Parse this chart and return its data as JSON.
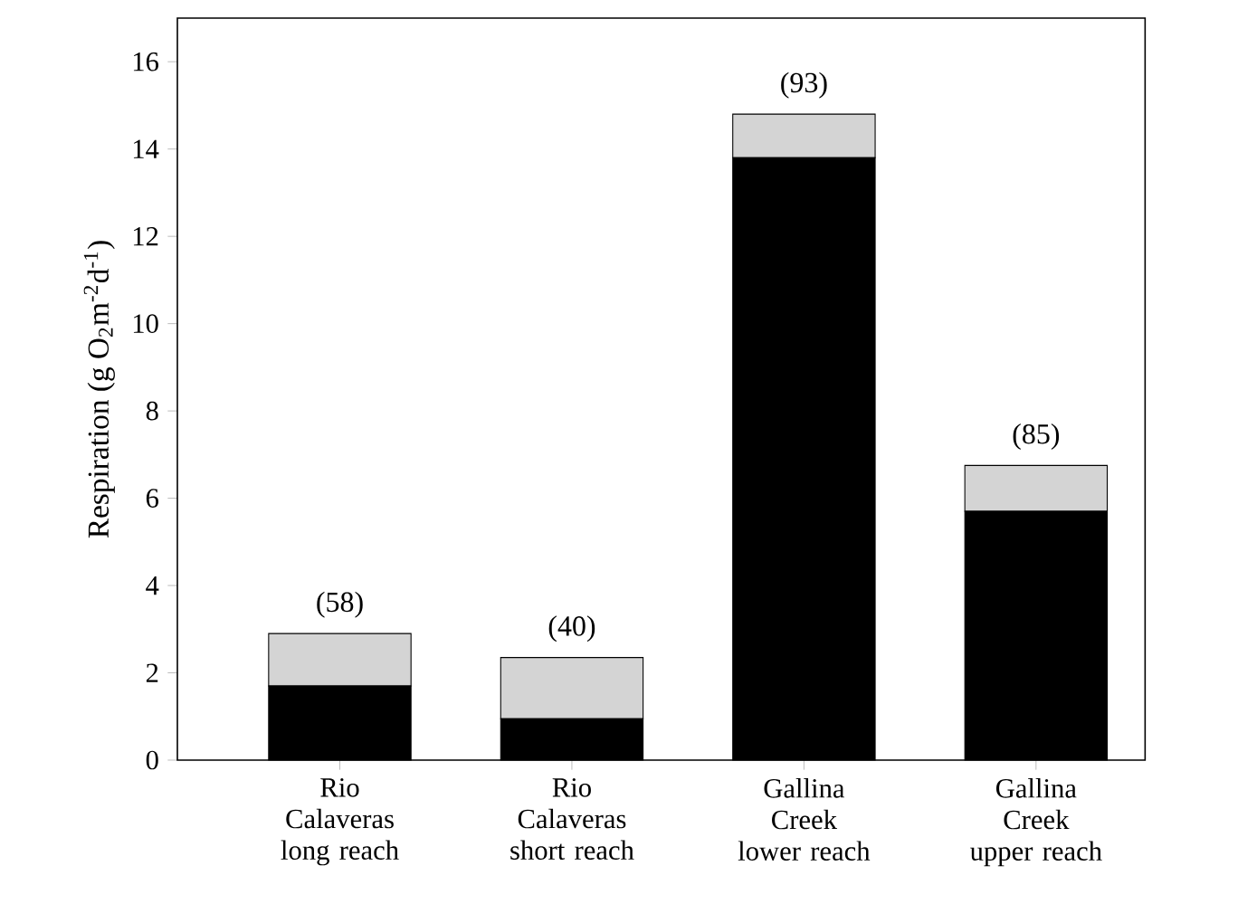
{
  "chart_data": {
    "type": "bar",
    "stacked": true,
    "ylabel": "Respiration  (g O$_{2}$m$^{-2}$d$^{-1}$)",
    "categories": [
      "Rio Calaveras long reach",
      "Rio Calaveras short reach",
      "Gallina Creek lower reach",
      "Gallina Creek upper reach"
    ],
    "series": [
      {
        "color": "#000000",
        "values": [
          1.7,
          0.95,
          13.8,
          5.7
        ]
      },
      {
        "color": "#d4d4d4",
        "values": [
          1.2,
          1.4,
          1.0,
          1.05
        ]
      }
    ],
    "ylim": [
      0,
      17
    ],
    "yticks": [
      0,
      2,
      4,
      6,
      8,
      10,
      12,
      14,
      16
    ],
    "annotations": [
      "(58)",
      "(40)",
      "(93)",
      "(85)"
    ]
  }
}
